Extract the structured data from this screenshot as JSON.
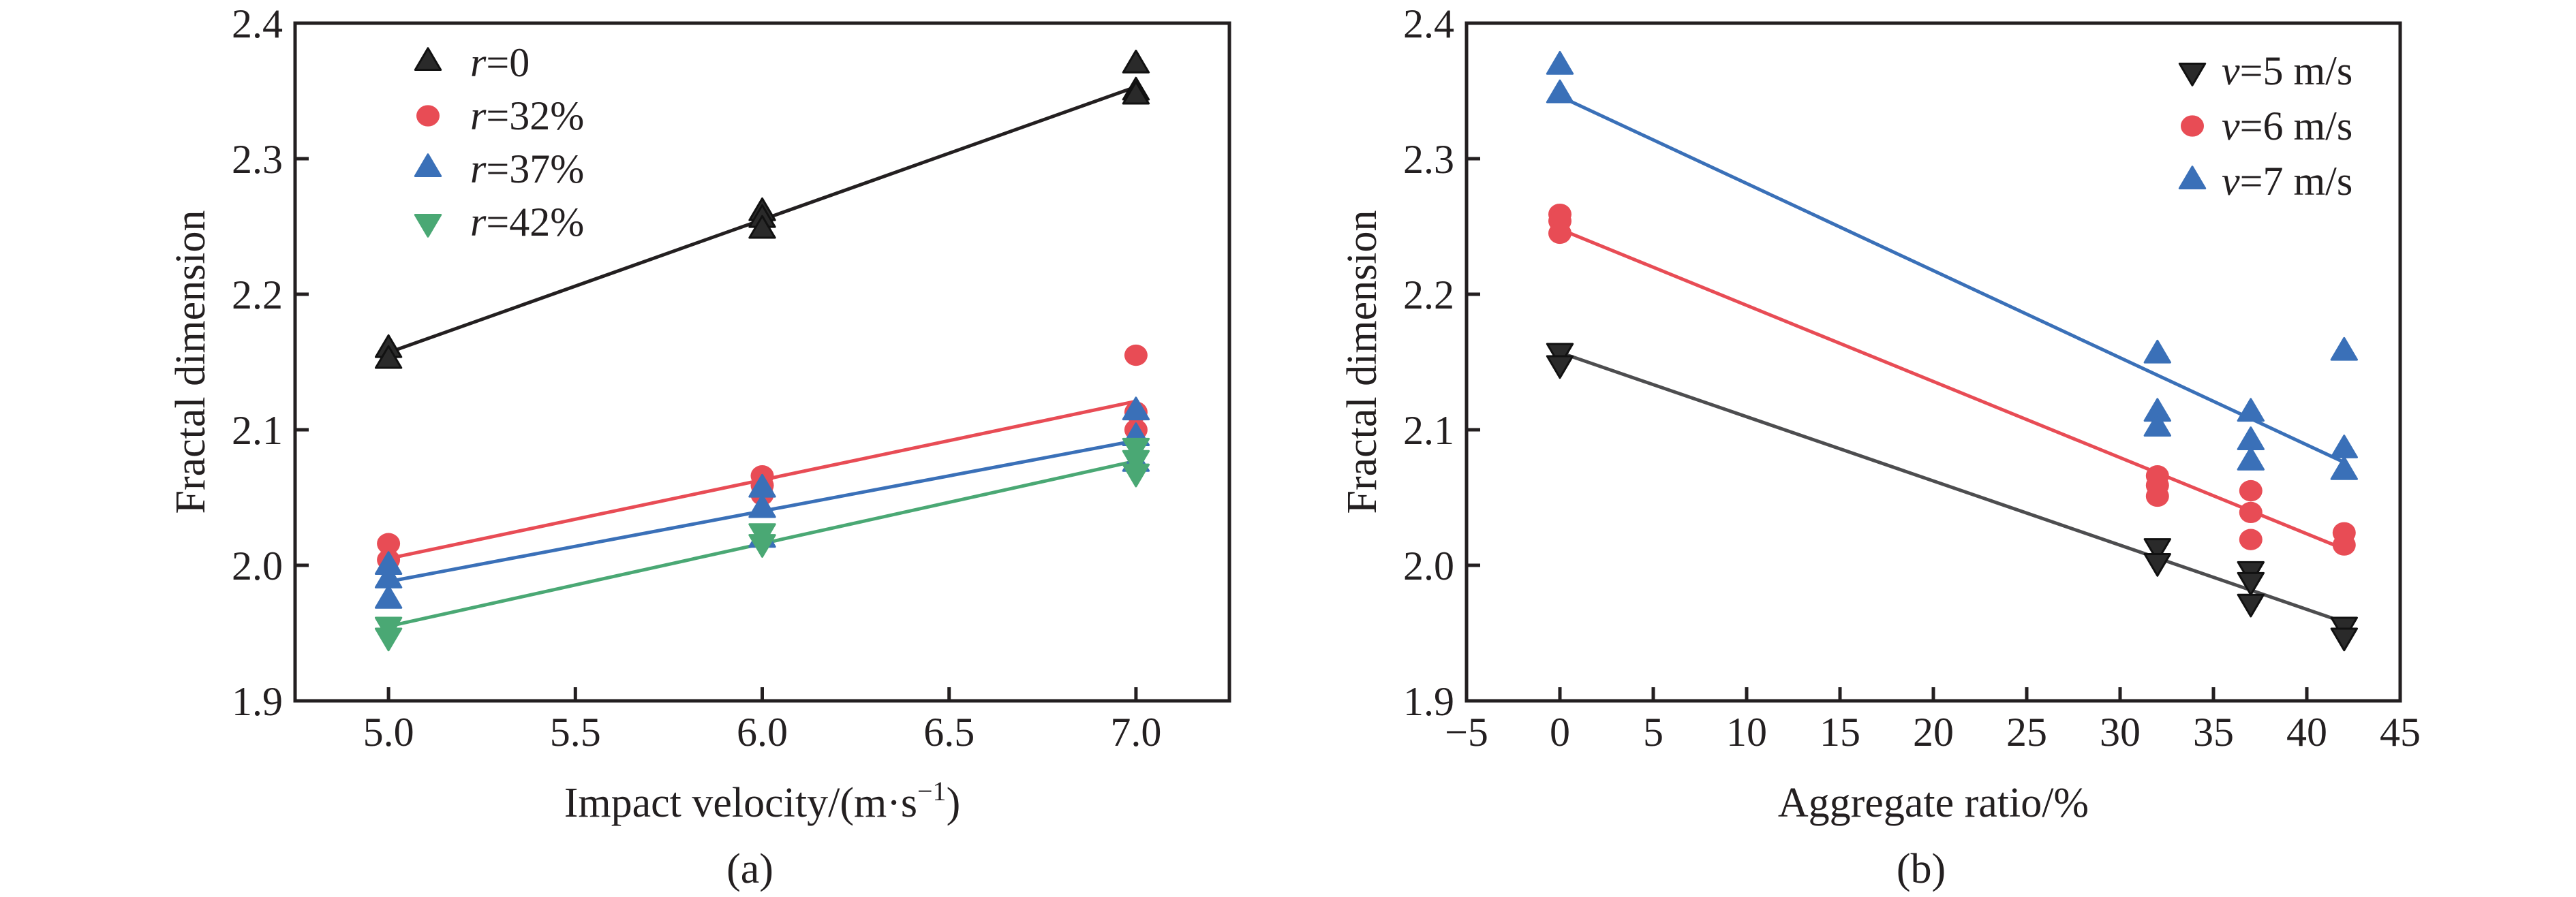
{
  "chart_data": [
    {
      "type": "scatter",
      "panel_label": "(a)",
      "xlabel": "Impact velocity/(m·s",
      "xlabel_sup": "−1",
      "xlabel_tail": ")",
      "ylabel": "Fractal dimension",
      "xlim": [
        4.75,
        7.25
      ],
      "ylim": [
        1.9,
        2.4
      ],
      "xticks": [
        5.0,
        5.5,
        6.0,
        6.5,
        7.0
      ],
      "xtick_labels": [
        "5.0",
        "5.5",
        "6.0",
        "6.5",
        "7.0"
      ],
      "yticks": [
        1.9,
        2.0,
        2.1,
        2.2,
        2.3,
        2.4
      ],
      "ytick_labels": [
        "1.9",
        "2.0",
        "2.1",
        "2.2",
        "2.3",
        "2.4"
      ],
      "grid": false,
      "legend_position": "top-left",
      "series": [
        {
          "name": "r=0",
          "legend_var": "r",
          "legend_rest": "=0",
          "marker": "triangle-up",
          "color": "#231f20",
          "points": [
            [
              5.0,
              2.159
            ],
            [
              5.0,
              2.151
            ],
            [
              6.0,
              2.26
            ],
            [
              6.0,
              2.255
            ],
            [
              6.0,
              2.247
            ],
            [
              7.0,
              2.369
            ],
            [
              7.0,
              2.349
            ],
            [
              7.0,
              2.346
            ]
          ],
          "fit": [
            [
              5.0,
              2.157
            ],
            [
              7.0,
              2.353
            ]
          ]
        },
        {
          "name": "r=32%",
          "legend_var": "r",
          "legend_rest": "=32%",
          "marker": "circle",
          "color": "#e84c55",
          "points": [
            [
              5.0,
              2.016
            ],
            [
              5.0,
              2.004
            ],
            [
              6.0,
              2.066
            ],
            [
              6.0,
              2.059
            ],
            [
              6.0,
              2.052
            ],
            [
              7.0,
              2.155
            ],
            [
              7.0,
              2.113
            ],
            [
              7.0,
              2.1
            ]
          ],
          "fit": [
            [
              5.0,
              2.005
            ],
            [
              7.0,
              2.121
            ]
          ]
        },
        {
          "name": "r=37%",
          "legend_var": "r",
          "legend_rest": "=37%",
          "marker": "triangle-up",
          "color": "#3a70b8",
          "points": [
            [
              5.0,
              1.999
            ],
            [
              5.0,
              1.989
            ],
            [
              5.0,
              1.974
            ],
            [
              6.0,
              2.056
            ],
            [
              6.0,
              2.041
            ],
            [
              6.0,
              2.019
            ],
            [
              7.0,
              2.113
            ],
            [
              7.0,
              2.094
            ],
            [
              7.0,
              2.075
            ]
          ],
          "fit": [
            [
              5.0,
              1.988
            ],
            [
              7.0,
              2.092
            ]
          ]
        },
        {
          "name": "r=42%",
          "legend_var": "r",
          "legend_rest": "=42%",
          "marker": "triangle-down",
          "color": "#4aa874",
          "points": [
            [
              5.0,
              1.956
            ],
            [
              5.0,
              1.948
            ],
            [
              6.0,
              2.025
            ],
            [
              6.0,
              2.017
            ],
            [
              7.0,
              2.088
            ],
            [
              7.0,
              2.079
            ],
            [
              7.0,
              2.069
            ]
          ],
          "fit": [
            [
              5.0,
              1.955
            ],
            [
              7.0,
              2.077
            ]
          ]
        }
      ]
    },
    {
      "type": "scatter",
      "panel_label": "(b)",
      "xlabel": "Aggregate ratio/%",
      "xlabel_sup": "",
      "xlabel_tail": "",
      "ylabel": "Fractal dimension",
      "xlim": [
        -5,
        45
      ],
      "ylim": [
        1.9,
        2.4
      ],
      "xticks": [
        -5,
        0,
        5,
        10,
        15,
        20,
        25,
        30,
        35,
        40,
        45
      ],
      "xtick_labels": [
        "−5",
        "0",
        "5",
        "10",
        "15",
        "20",
        "25",
        "30",
        "35",
        "40",
        "45"
      ],
      "yticks": [
        1.9,
        2.0,
        2.1,
        2.2,
        2.3,
        2.4
      ],
      "ytick_labels": [
        "1.9",
        "2.0",
        "2.1",
        "2.2",
        "2.3",
        "2.4"
      ],
      "grid": false,
      "legend_position": "top-right",
      "series": [
        {
          "name": "v=5 m/s",
          "legend_var": "v",
          "legend_rest": "=5 m/s",
          "marker": "triangle-down",
          "color": "#231f20",
          "line_color": "#4d4d4f",
          "points": [
            [
              0,
              2.158
            ],
            [
              0,
              2.149
            ],
            [
              32,
              2.014
            ],
            [
              32,
              2.003
            ],
            [
              37,
              1.997
            ],
            [
              37,
              1.989
            ],
            [
              37,
              1.973
            ],
            [
              42,
              1.956
            ],
            [
              42,
              1.948
            ]
          ],
          "fit": [
            [
              0,
              2.157
            ],
            [
              42,
              1.958
            ]
          ]
        },
        {
          "name": "v=6 m/s",
          "legend_var": "v",
          "legend_rest": "=6 m/s",
          "marker": "circle",
          "color": "#e84c55",
          "points": [
            [
              0,
              2.259
            ],
            [
              0,
              2.254
            ],
            [
              0,
              2.245
            ],
            [
              32,
              2.066
            ],
            [
              32,
              2.059
            ],
            [
              32,
              2.051
            ],
            [
              37,
              2.055
            ],
            [
              37,
              2.039
            ],
            [
              37,
              2.019
            ],
            [
              42,
              2.024
            ],
            [
              42,
              2.015
            ]
          ],
          "fit": [
            [
              0,
              2.248
            ],
            [
              42,
              2.012
            ]
          ]
        },
        {
          "name": "v=7 m/s",
          "legend_var": "v",
          "legend_rest": "=7 m/s",
          "marker": "triangle-up",
          "color": "#3a70b8",
          "points": [
            [
              0,
              2.368
            ],
            [
              0,
              2.347
            ],
            [
              32,
              2.155
            ],
            [
              32,
              2.112
            ],
            [
              32,
              2.101
            ],
            [
              37,
              2.112
            ],
            [
              37,
              2.091
            ],
            [
              37,
              2.076
            ],
            [
              42,
              2.157
            ],
            [
              42,
              2.085
            ],
            [
              42,
              2.069
            ]
          ],
          "fit": [
            [
              0,
              2.346
            ],
            [
              42,
              2.076
            ]
          ]
        }
      ]
    }
  ]
}
